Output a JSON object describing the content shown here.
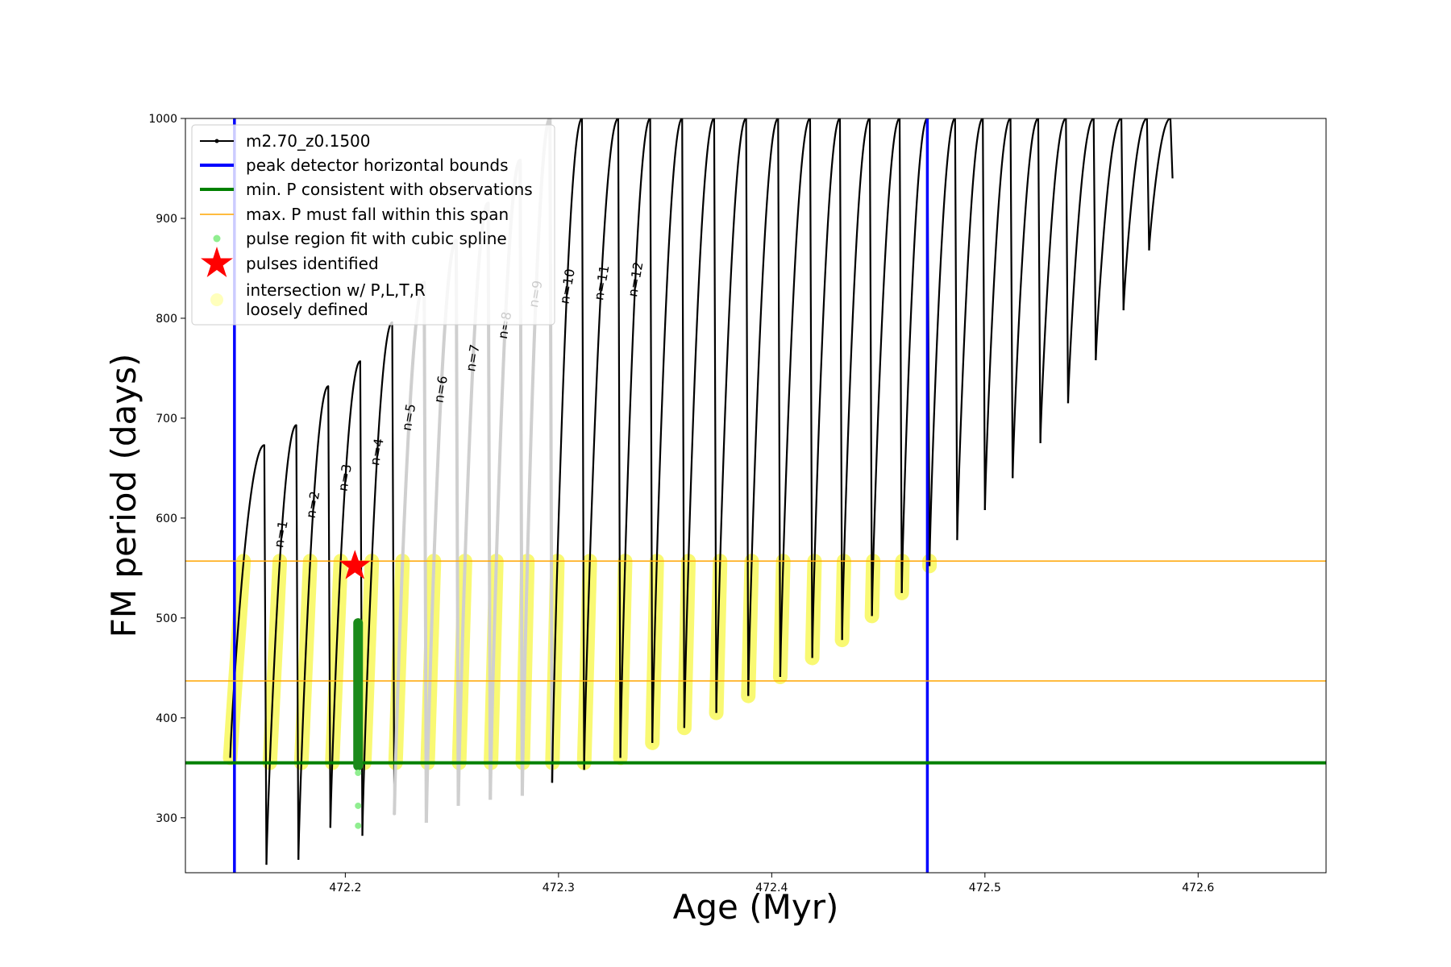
{
  "chart_data": {
    "type": "line",
    "xlabel": "Age (Myr)",
    "ylabel": "FM period (days)",
    "xlim": [
      472.125,
      472.66
    ],
    "ylim": [
      245,
      1000
    ],
    "x_ticks": [
      472.2,
      472.3,
      472.4,
      472.5,
      472.6
    ],
    "x_tick_labels": [
      "472.2",
      "472.3",
      "472.4",
      "472.5",
      "472.6"
    ],
    "y_ticks": [
      300,
      400,
      500,
      600,
      700,
      800,
      900,
      1000
    ],
    "y_tick_labels": [
      "300",
      "400",
      "500",
      "600",
      "700",
      "800",
      "900",
      "1000"
    ],
    "grid": false,
    "legend_position": "top-left",
    "legend": [
      {
        "label": "m2.70_z0.1500",
        "style": "line-marker",
        "color": "#000000"
      },
      {
        "label": "peak detector horizontal bounds",
        "style": "line",
        "color": "#0000ff"
      },
      {
        "label": "min. P consistent with observations",
        "style": "line",
        "color": "#008000"
      },
      {
        "label": "max. P must fall within this span",
        "style": "thin-line",
        "color": "#ffa500"
      },
      {
        "label": "pulse region fit with cubic spline",
        "style": "dot",
        "color": "#90ee90"
      },
      {
        "label": "pulses identified",
        "style": "star",
        "color": "#ff0000"
      },
      {
        "label": "intersection w/ P,L,T,R\nloosely defined",
        "style": "halo",
        "color": "#ffffa0"
      }
    ],
    "vertical_lines": {
      "color": "#0000ff",
      "x": [
        472.148,
        472.473
      ]
    },
    "min_period_line": {
      "color": "#008000",
      "y": 355
    },
    "max_period_span": {
      "color": "#ffa500",
      "y": [
        437,
        557
      ]
    },
    "pulses": [
      {
        "start": 472.146,
        "peak": 472.162,
        "reset": 472.163,
        "p_start": 360,
        "p_peak": 673,
        "p_min": 253,
        "label": "",
        "gray": false
      },
      {
        "start": 472.163,
        "peak": 472.177,
        "reset": 472.178,
        "p_start": 253,
        "p_peak": 693,
        "p_min": 258,
        "label": "n=1",
        "gray": false
      },
      {
        "start": 472.178,
        "peak": 472.192,
        "reset": 472.193,
        "p_start": 258,
        "p_peak": 732,
        "p_min": 290,
        "label": "n=2",
        "gray": false
      },
      {
        "start": 472.193,
        "peak": 472.207,
        "reset": 472.208,
        "p_start": 290,
        "p_peak": 757,
        "p_min": 282,
        "label": "n=3",
        "gray": false
      },
      {
        "start": 472.208,
        "peak": 472.222,
        "reset": 472.223,
        "p_start": 282,
        "p_peak": 796,
        "p_min": 303,
        "label": "n=4",
        "gray": false
      },
      {
        "start": 472.223,
        "peak": 472.237,
        "reset": 472.238,
        "p_start": 303,
        "p_peak": 836,
        "p_min": 295,
        "label": "n=5",
        "gray": true
      },
      {
        "start": 472.238,
        "peak": 472.252,
        "reset": 472.253,
        "p_start": 295,
        "p_peak": 878,
        "p_min": 312,
        "label": "n=6",
        "gray": true
      },
      {
        "start": 472.253,
        "peak": 472.267,
        "reset": 472.268,
        "p_start": 312,
        "p_peak": 915,
        "p_min": 318,
        "label": "n=7",
        "gray": true
      },
      {
        "start": 472.268,
        "peak": 472.282,
        "reset": 472.283,
        "p_start": 318,
        "p_peak": 958,
        "p_min": 322,
        "label": "n=8",
        "gray": true
      },
      {
        "start": 472.283,
        "peak": 472.296,
        "reset": 472.297,
        "p_start": 322,
        "p_peak": 1000,
        "p_min": 335,
        "label": "n=9",
        "gray": true
      },
      {
        "start": 472.297,
        "peak": 472.311,
        "reset": 472.312,
        "p_start": 335,
        "p_peak": 1000,
        "p_min": 348,
        "label": "n=10",
        "gray": false
      },
      {
        "start": 472.312,
        "peak": 472.328,
        "reset": 472.329,
        "p_start": 348,
        "p_peak": 1000,
        "p_min": 360,
        "label": "n=11",
        "gray": false
      },
      {
        "start": 472.329,
        "peak": 472.343,
        "reset": 472.344,
        "p_start": 360,
        "p_peak": 1000,
        "p_min": 375,
        "label": "n=12",
        "gray": false
      },
      {
        "start": 472.344,
        "peak": 472.358,
        "reset": 472.359,
        "p_start": 375,
        "p_peak": 1000,
        "p_min": 390,
        "label": "",
        "gray": false
      },
      {
        "start": 472.359,
        "peak": 472.373,
        "reset": 472.374,
        "p_start": 390,
        "p_peak": 1000,
        "p_min": 405,
        "label": "",
        "gray": false
      },
      {
        "start": 472.374,
        "peak": 472.388,
        "reset": 472.389,
        "p_start": 405,
        "p_peak": 1000,
        "p_min": 422,
        "label": "",
        "gray": false
      },
      {
        "start": 472.389,
        "peak": 472.403,
        "reset": 472.404,
        "p_start": 422,
        "p_peak": 1000,
        "p_min": 441,
        "label": "",
        "gray": false
      },
      {
        "start": 472.404,
        "peak": 472.418,
        "reset": 472.419,
        "p_start": 441,
        "p_peak": 1000,
        "p_min": 460,
        "label": "",
        "gray": false
      },
      {
        "start": 472.419,
        "peak": 472.432,
        "reset": 472.433,
        "p_start": 460,
        "p_peak": 1000,
        "p_min": 478,
        "label": "",
        "gray": false
      },
      {
        "start": 472.433,
        "peak": 472.446,
        "reset": 472.447,
        "p_start": 478,
        "p_peak": 1000,
        "p_min": 502,
        "label": "",
        "gray": false
      },
      {
        "start": 472.447,
        "peak": 472.46,
        "reset": 472.461,
        "p_start": 502,
        "p_peak": 1000,
        "p_min": 525,
        "label": "",
        "gray": false
      },
      {
        "start": 472.461,
        "peak": 472.473,
        "reset": 472.474,
        "p_start": 525,
        "p_peak": 1000,
        "p_min": 552,
        "label": "",
        "gray": false
      },
      {
        "start": 472.474,
        "peak": 472.486,
        "reset": 472.487,
        "p_start": 552,
        "p_peak": 1000,
        "p_min": 578,
        "label": "",
        "gray": false
      },
      {
        "start": 472.487,
        "peak": 472.499,
        "reset": 472.5,
        "p_start": 578,
        "p_peak": 1000,
        "p_min": 608,
        "label": "",
        "gray": false
      },
      {
        "start": 472.5,
        "peak": 472.512,
        "reset": 472.513,
        "p_start": 608,
        "p_peak": 1000,
        "p_min": 640,
        "label": "",
        "gray": false
      },
      {
        "start": 472.513,
        "peak": 472.525,
        "reset": 472.526,
        "p_start": 640,
        "p_peak": 1000,
        "p_min": 675,
        "label": "",
        "gray": false
      },
      {
        "start": 472.526,
        "peak": 472.538,
        "reset": 472.539,
        "p_start": 675,
        "p_peak": 1000,
        "p_min": 715,
        "label": "",
        "gray": false
      },
      {
        "start": 472.539,
        "peak": 472.551,
        "reset": 472.552,
        "p_start": 715,
        "p_peak": 1000,
        "p_min": 758,
        "label": "",
        "gray": false
      },
      {
        "start": 472.552,
        "peak": 472.564,
        "reset": 472.565,
        "p_start": 758,
        "p_peak": 1000,
        "p_min": 808,
        "label": "",
        "gray": false
      },
      {
        "start": 472.565,
        "peak": 472.576,
        "reset": 472.577,
        "p_start": 808,
        "p_peak": 1000,
        "p_min": 868,
        "label": "",
        "gray": false
      },
      {
        "start": 472.577,
        "peak": 472.587,
        "reset": 472.588,
        "p_start": 868,
        "p_peak": 1000,
        "p_min": 940,
        "label": "",
        "gray": false
      }
    ],
    "spline_region": {
      "x": 472.206,
      "y_from": 292,
      "y_to": 495
    },
    "pulse_identified": {
      "x": 472.2045,
      "y": 552
    }
  }
}
